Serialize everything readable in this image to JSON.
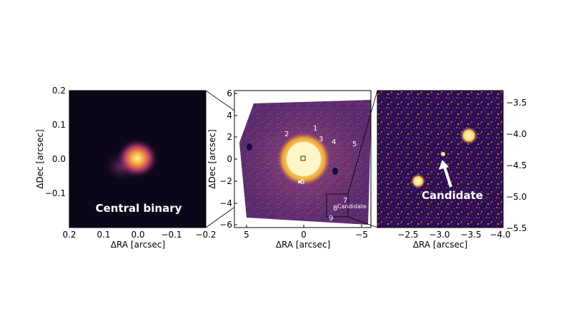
{
  "panels": [
    {
      "id": "left",
      "label": "Central binary",
      "xlabel": "ΔRA [arcsec]",
      "ylabel": "ΔDec [arcsec]",
      "xticks": [
        "0.2",
        "0.1",
        "0.0",
        "−0.1",
        "−0.2"
      ],
      "yticks": [
        "0.2",
        "0.1",
        "0.0",
        "−0.1"
      ]
    },
    {
      "id": "middle",
      "xlabel": "ΔRA [arcsec]",
      "ylabel": "ΔDec [arcsec]",
      "xticks": [
        "5",
        "0",
        "−5"
      ],
      "yticks": [
        "6",
        "4",
        "2",
        "0",
        "−2",
        "−4",
        "−6"
      ],
      "source_labels": [
        "1",
        "2",
        "3",
        "4",
        "5",
        "6",
        "7",
        "8",
        "9",
        "Candidate"
      ]
    },
    {
      "id": "right",
      "label": "Candidate",
      "xlabel": "ΔRA [arcsec]",
      "xticks": [
        "−2.5",
        "−3.0",
        "−3.5",
        "−4.0"
      ],
      "yticks": [
        "−3.5",
        "−4.0",
        "−4.5",
        "−5.0",
        "−5.5"
      ]
    }
  ],
  "colors": {
    "background_dark": "#0b0618",
    "halo_purple": "#7a3a88",
    "core_yellow": "#ffe98a",
    "text_white": "#ffffff"
  }
}
